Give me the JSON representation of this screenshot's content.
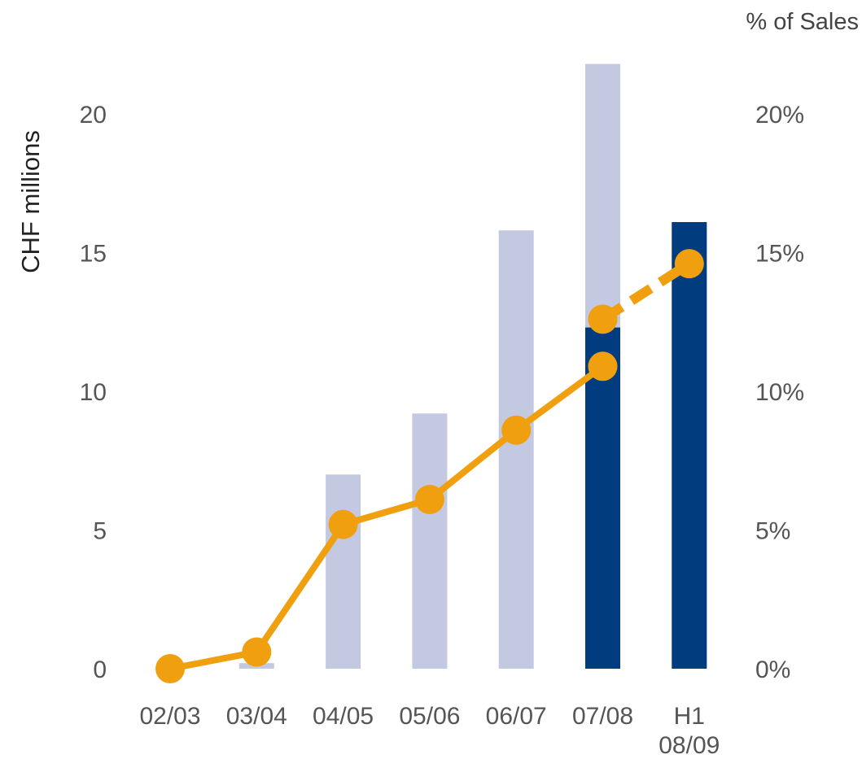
{
  "chart_data": {
    "type": "bar",
    "categories": [
      [
        "02/03"
      ],
      [
        "03/04"
      ],
      [
        "04/05"
      ],
      [
        "05/06"
      ],
      [
        "06/07"
      ],
      [
        "07/08"
      ],
      [
        "H1",
        "08/09"
      ]
    ],
    "ylabel": "CHF millions",
    "y2label": "% of Sales",
    "ylim": [
      0,
      22
    ],
    "y2lim": [
      0,
      22
    ],
    "yticks": [
      "0",
      "5",
      "10",
      "15",
      "20"
    ],
    "y2ticks": [
      "0%",
      "5%",
      "10%",
      "15%",
      "20%"
    ],
    "grid": false,
    "colors": {
      "bar_light": "#c3c9e1",
      "bar_dark": "#003c7e",
      "line": "#f0a00f"
    },
    "bars": [
      {
        "total": 0,
        "highlight": 0
      },
      {
        "total": 0.2,
        "highlight": 0
      },
      {
        "total": 7.0,
        "highlight": 0
      },
      {
        "total": 9.2,
        "highlight": 0
      },
      {
        "total": 15.8,
        "highlight": 0
      },
      {
        "total": 21.8,
        "highlight": 12.3
      },
      {
        "total": 16.1,
        "highlight": 16.1
      }
    ],
    "line": {
      "solid": [
        0,
        0.6,
        5.2,
        6.1,
        8.6,
        10.9
      ],
      "dashed": [
        {
          "category": 5,
          "value": 12.6
        },
        {
          "category": 6,
          "value": 14.6
        }
      ]
    }
  }
}
